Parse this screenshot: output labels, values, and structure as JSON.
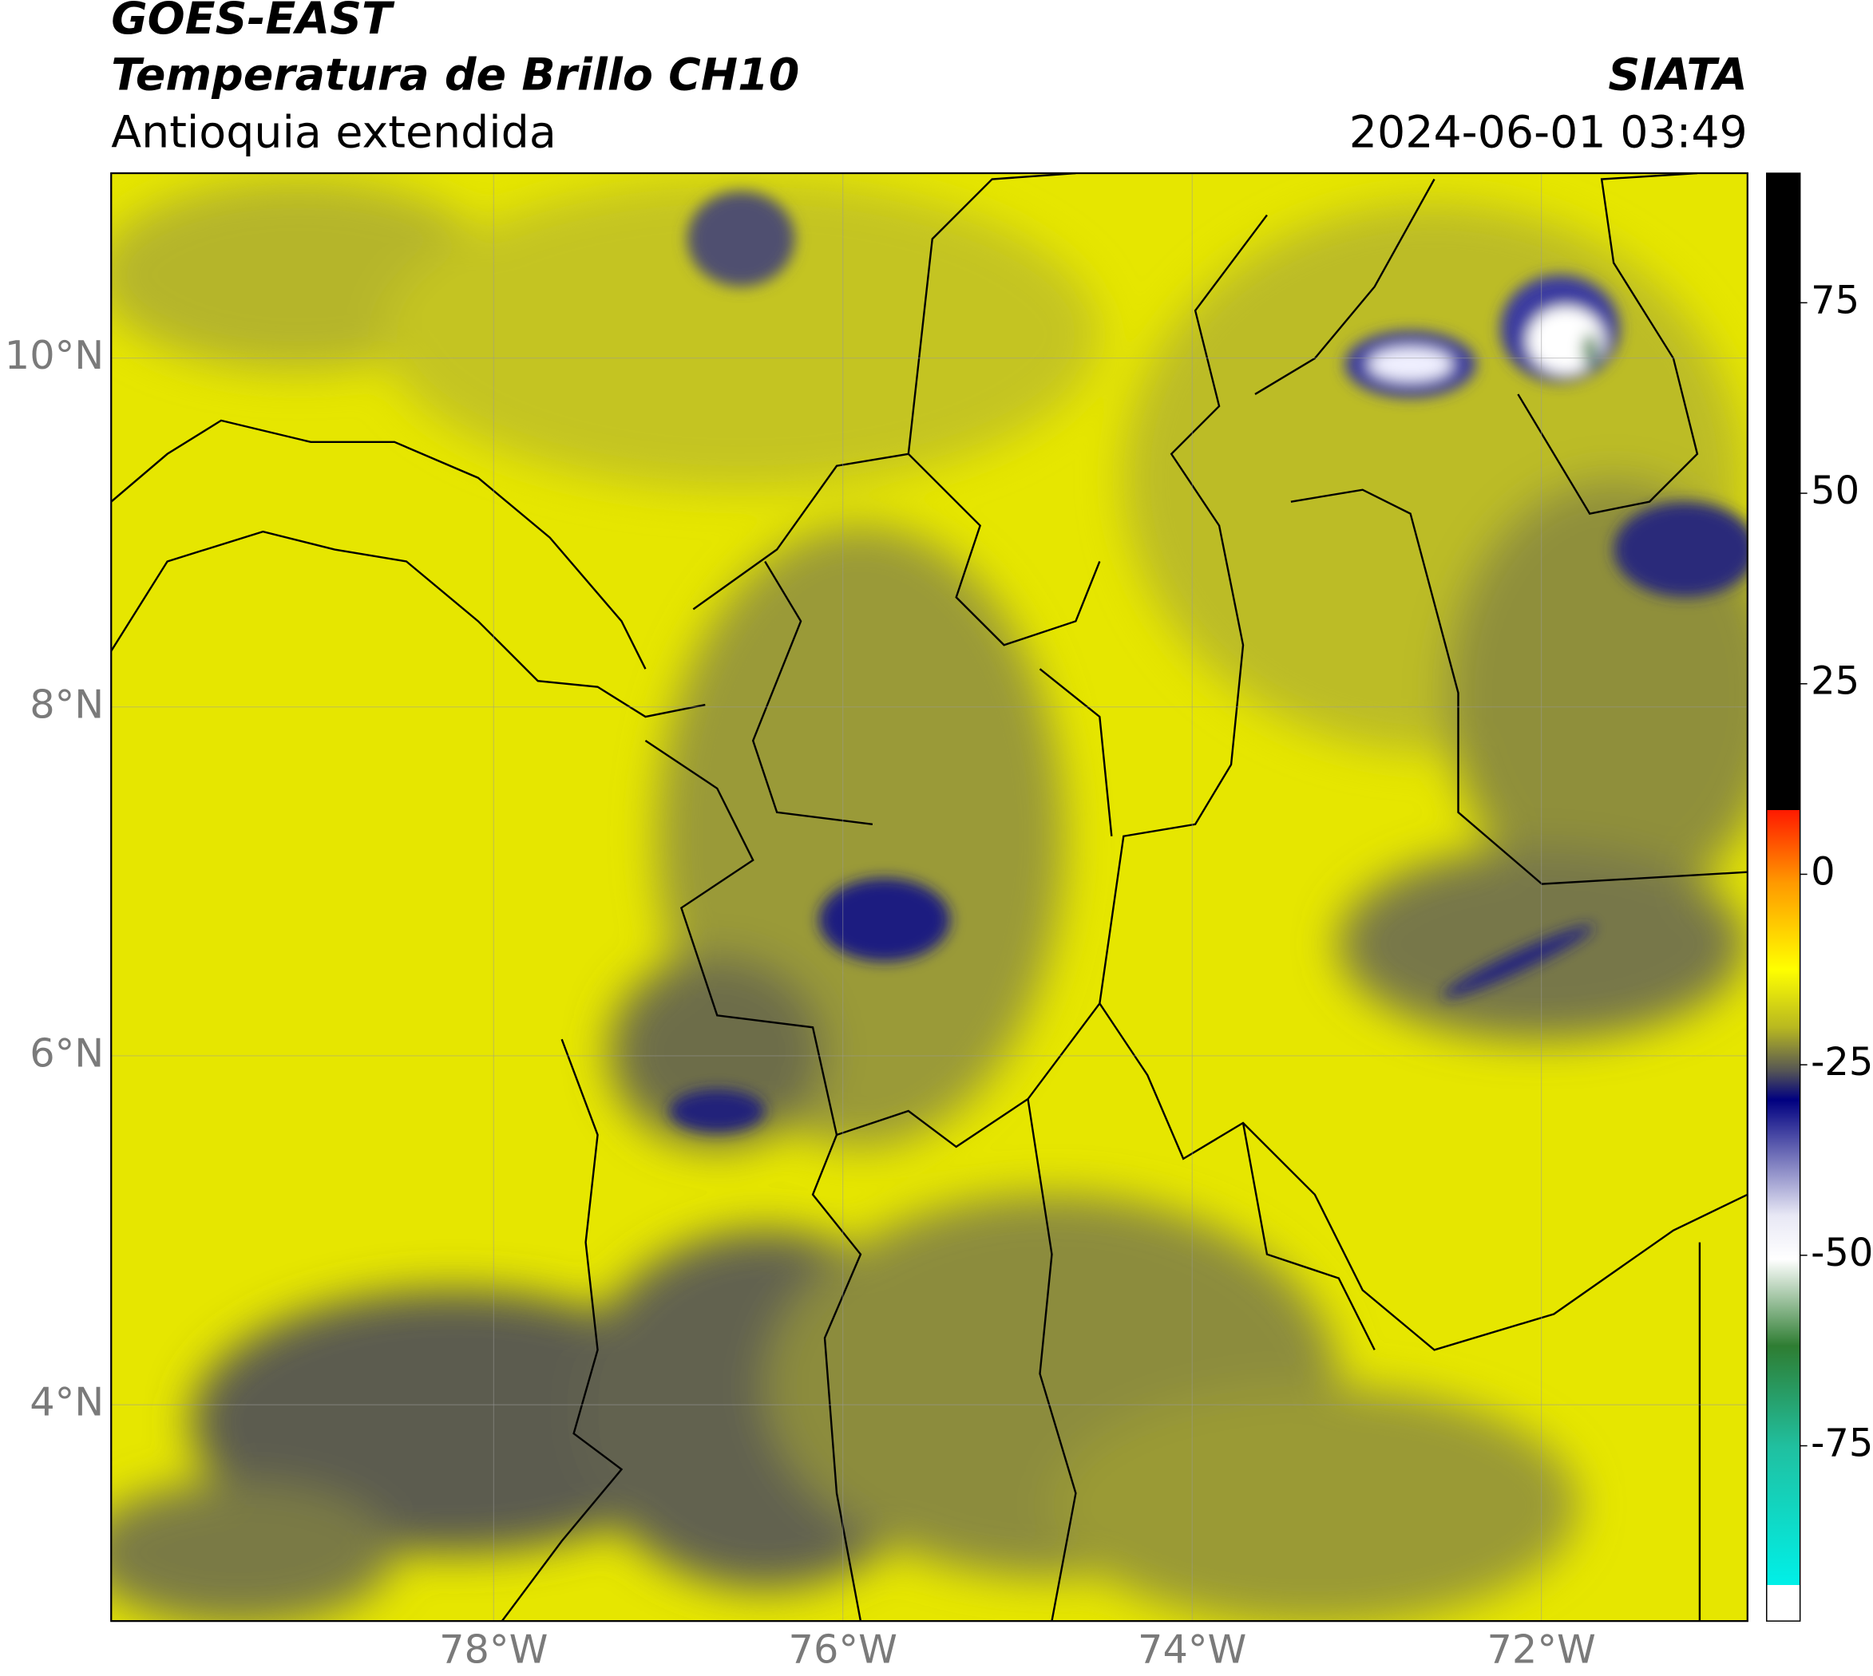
{
  "header": {
    "title": "GOES-EAST",
    "subtitle": "Temperatura de Brillo CH10",
    "region": "Antioquia extendida",
    "source": "SIATA",
    "datetime": "2024-06-01 03:49"
  },
  "map": {
    "xlim": [
      -80.19,
      -70.82
    ],
    "ylim": [
      2.76,
      11.06
    ],
    "xticks": [
      {
        "value": -78,
        "label": "78°W"
      },
      {
        "value": -76,
        "label": "76°W"
      },
      {
        "value": -74,
        "label": "74°W"
      },
      {
        "value": -72,
        "label": "72°W"
      }
    ],
    "yticks": [
      {
        "value": 4,
        "label": "4°N"
      },
      {
        "value": 6,
        "label": "6°N"
      },
      {
        "value": 8,
        "label": "8°N"
      },
      {
        "value": 10,
        "label": "10°N"
      }
    ],
    "grid": true
  },
  "colorbar": {
    "lim": [
      -98,
      92
    ],
    "ticks": [
      75,
      50,
      25,
      0,
      -25,
      -50,
      -75
    ]
  }
}
